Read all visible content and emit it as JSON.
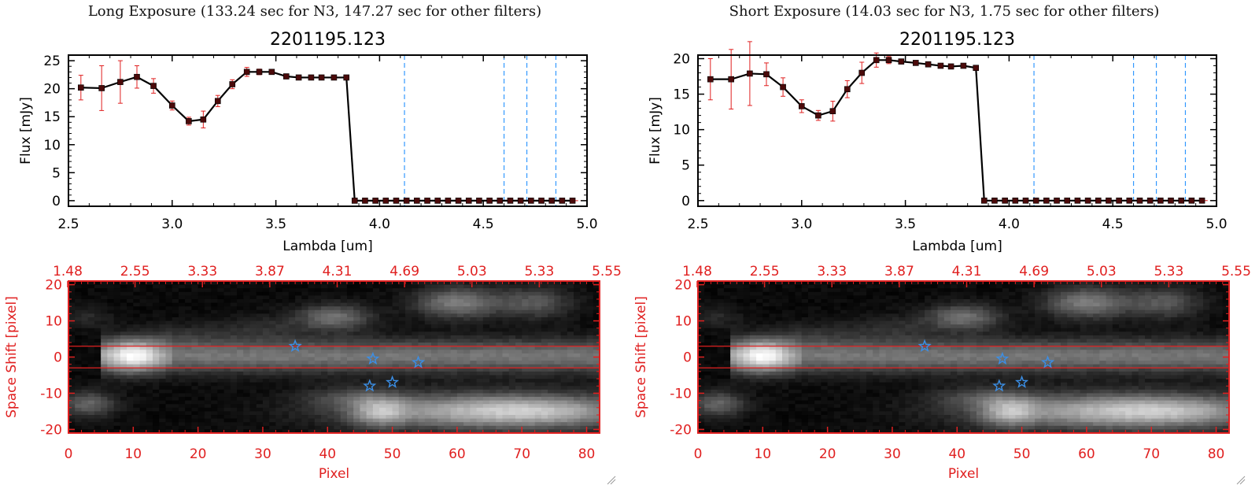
{
  "panels": [
    {
      "exposure_title": "Long Exposure (133.24 sec for N3, 147.27 sec for other filters)",
      "object_id": "2201195.123"
    },
    {
      "exposure_title": "Short Exposure (14.03 sec for N3, 1.75 sec for other filters)",
      "object_id": "2201195.123"
    }
  ],
  "colors": {
    "axis": "#000000",
    "error_bar": "#e02020",
    "marker": "#4a0a0a",
    "filter_line": "#3399ff",
    "image_axis": "#e02020",
    "star": "#3b8fe6",
    "aperture_line": "#e02020"
  },
  "chart_data": [
    {
      "type": "line",
      "panel": "long",
      "title": "2201195.123",
      "xlabel": "Lambda [um]",
      "ylabel": "Flux [mJy]",
      "xlim": [
        2.5,
        5.0
      ],
      "ylim": [
        -1,
        26
      ],
      "xticks": [
        "2.5",
        "3.0",
        "3.5",
        "4.0",
        "4.5",
        "5.0"
      ],
      "yticks": [
        "0",
        "5",
        "10",
        "15",
        "20",
        "25"
      ],
      "filter_lines": [
        4.12,
        4.6,
        4.71,
        4.85
      ],
      "x": [
        2.56,
        2.66,
        2.75,
        2.83,
        2.91,
        3.0,
        3.08,
        3.15,
        3.22,
        3.29,
        3.36,
        3.42,
        3.48,
        3.55,
        3.61,
        3.67,
        3.72,
        3.78,
        3.84,
        3.88,
        3.93,
        3.98,
        4.03,
        4.08,
        4.13,
        4.18,
        4.23,
        4.28,
        4.33,
        4.38,
        4.43,
        4.48,
        4.53,
        4.58,
        4.63,
        4.68,
        4.73,
        4.78,
        4.83,
        4.88,
        4.93
      ],
      "y": [
        20.2,
        20.1,
        21.2,
        22.1,
        20.5,
        17.0,
        14.2,
        14.5,
        17.8,
        20.8,
        23.0,
        23.0,
        23.0,
        22.2,
        22.0,
        22.0,
        22.0,
        22.0,
        22.0,
        0,
        0,
        0,
        0,
        0,
        0,
        0,
        0,
        0,
        0,
        0,
        0,
        0,
        0,
        0,
        0,
        0,
        0,
        0,
        0,
        0,
        0
      ],
      "err": [
        2.2,
        4.0,
        3.8,
        2.0,
        1.3,
        0.8,
        0.7,
        1.5,
        1.0,
        0.8,
        0.8,
        0.5,
        0,
        0,
        0,
        0,
        0,
        0,
        0,
        0,
        0,
        0,
        0,
        0,
        0,
        0,
        0,
        0,
        0,
        0,
        0,
        0,
        0,
        0,
        0,
        0,
        0,
        0,
        0,
        0,
        0
      ]
    },
    {
      "type": "line",
      "panel": "short",
      "title": "2201195.123",
      "xlabel": "Lambda [um]",
      "ylabel": "Flux [mJy]",
      "xlim": [
        2.5,
        5.0
      ],
      "ylim": [
        -0.8,
        20.5
      ],
      "xticks": [
        "2.5",
        "3.0",
        "3.5",
        "4.0",
        "4.5",
        "5.0"
      ],
      "yticks": [
        "0",
        "5",
        "10",
        "15",
        "20"
      ],
      "filter_lines": [
        4.12,
        4.6,
        4.71,
        4.85
      ],
      "x": [
        2.56,
        2.66,
        2.75,
        2.83,
        2.91,
        3.0,
        3.08,
        3.15,
        3.22,
        3.29,
        3.36,
        3.42,
        3.48,
        3.55,
        3.61,
        3.67,
        3.72,
        3.78,
        3.84,
        3.88,
        3.93,
        3.98,
        4.03,
        4.08,
        4.13,
        4.18,
        4.23,
        4.28,
        4.33,
        4.38,
        4.43,
        4.48,
        4.53,
        4.58,
        4.63,
        4.68,
        4.73,
        4.78,
        4.83,
        4.88,
        4.93
      ],
      "y": [
        17.1,
        17.1,
        17.9,
        17.8,
        16.0,
        13.3,
        12.0,
        12.6,
        15.7,
        18.0,
        19.8,
        19.8,
        19.6,
        19.4,
        19.2,
        19.0,
        18.9,
        19.0,
        18.7,
        0,
        0,
        0,
        0,
        0,
        0,
        0,
        0,
        0,
        0,
        0,
        0,
        0,
        0,
        0,
        0,
        0,
        0,
        0,
        0,
        0,
        0
      ],
      "err": [
        2.9,
        4.2,
        4.5,
        1.6,
        1.3,
        0.9,
        0.7,
        1.4,
        1.2,
        1.5,
        1.0,
        0.5,
        0,
        0,
        0,
        0,
        0,
        0,
        0,
        0,
        0,
        0,
        0,
        0,
        0,
        0,
        0,
        0,
        0,
        0,
        0,
        0,
        0,
        0,
        0,
        0,
        0,
        0,
        0,
        0,
        0
      ]
    },
    {
      "type": "heatmap",
      "panel": "long",
      "xlabel": "Pixel",
      "ylabel": "Space Shift [pixel]",
      "xlim": [
        0,
        82
      ],
      "ylim": [
        -21,
        21
      ],
      "xticks": [
        "0",
        "10",
        "20",
        "30",
        "40",
        "50",
        "60",
        "70",
        "80"
      ],
      "yticks": [
        "-20",
        "-10",
        "0",
        "10",
        "20"
      ],
      "top_axis_ticks": [
        "1.48",
        "2.55",
        "3.33",
        "3.87",
        "4.31",
        "4.69",
        "5.03",
        "5.33",
        "5.55"
      ],
      "aperture_lines": [
        3,
        -3
      ],
      "stars": [
        [
          35,
          3
        ],
        [
          47,
          -0.5
        ],
        [
          54,
          -1.5
        ],
        [
          46.5,
          -8
        ],
        [
          50,
          -7
        ]
      ]
    },
    {
      "type": "heatmap",
      "panel": "short",
      "xlabel": "Pixel",
      "ylabel": "Space Shift [pixel]",
      "xlim": [
        0,
        82
      ],
      "ylim": [
        -21,
        21
      ],
      "xticks": [
        "0",
        "10",
        "20",
        "30",
        "40",
        "50",
        "60",
        "70",
        "80"
      ],
      "yticks": [
        "-20",
        "-10",
        "0",
        "10",
        "20"
      ],
      "top_axis_ticks": [
        "1.48",
        "2.55",
        "3.33",
        "3.87",
        "4.31",
        "4.69",
        "5.03",
        "5.33",
        "5.55"
      ],
      "aperture_lines": [
        3,
        -3
      ],
      "stars": [
        [
          35,
          3
        ],
        [
          47,
          -0.5
        ],
        [
          54,
          -1.5
        ],
        [
          46.5,
          -8
        ],
        [
          50,
          -7
        ]
      ]
    }
  ]
}
